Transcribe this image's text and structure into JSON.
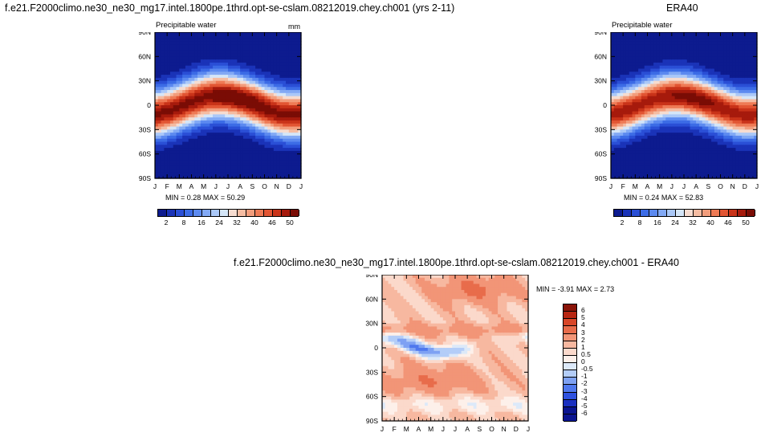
{
  "chart_data": [
    {
      "type": "heatmap",
      "title": "f.e21.F2000climo.ne30_ne30_mg17.intel.1800pe.1thrd.opt-se-cslam.08212019.chey.ch001 (yrs 2-11)",
      "subtitle": "Precipitable water",
      "units": "mm",
      "x_ticks": [
        "J",
        "F",
        "M",
        "A",
        "M",
        "J",
        "J",
        "A",
        "S",
        "O",
        "N",
        "D",
        "J"
      ],
      "y_ticks": [
        "90N",
        "60N",
        "30N",
        "0",
        "30S",
        "60S",
        "90S"
      ],
      "stats_min_label": "MIN =",
      "stats_min": "0.28",
      "stats_max_label": "MAX =",
      "stats_max": "50.29",
      "colorbar_labels": [
        "2",
        "8",
        "16",
        "24",
        "32",
        "40",
        "46",
        "50"
      ],
      "min_value": 0.28,
      "max_value": 50.29
    },
    {
      "type": "heatmap",
      "title": "ERA40",
      "subtitle": "Precipitable water",
      "x_ticks": [
        "J",
        "F",
        "M",
        "A",
        "M",
        "J",
        "J",
        "A",
        "S",
        "O",
        "N",
        "D",
        "J"
      ],
      "y_ticks": [
        "90N",
        "60N",
        "30N",
        "0",
        "30S",
        "60S",
        "90S"
      ],
      "stats_min_label": "MIN =",
      "stats_min": "0.24",
      "stats_max_label": "MAX =",
      "stats_max": "52.83",
      "colorbar_labels": [
        "2",
        "8",
        "16",
        "24",
        "32",
        "40",
        "46",
        "50"
      ],
      "min_value": 0.24,
      "max_value": 52.83
    },
    {
      "type": "heatmap",
      "title": "f.e21.F2000climo.ne30_ne30_mg17.intel.1800pe.1thrd.opt-se-cslam.08212019.chey.ch001 - ERA40",
      "x_ticks": [
        "J",
        "F",
        "M",
        "A",
        "M",
        "J",
        "J",
        "A",
        "S",
        "O",
        "N",
        "D",
        "J"
      ],
      "y_ticks": [
        "90N",
        "60N",
        "30N",
        "0",
        "30S",
        "60S",
        "90S"
      ],
      "stats_min_label": "MIN =",
      "stats_min": "-3.91",
      "stats_max_label": "MAX =",
      "stats_max": "2.73",
      "colorbar_labels": [
        "6",
        "5",
        "4",
        "3",
        "2",
        "1",
        "0.5",
        "0",
        "-0.5",
        "-1",
        "-2",
        "-3",
        "-4",
        "-5",
        "-6"
      ],
      "min_value": -3.91,
      "max_value": 2.73
    }
  ],
  "colors": {
    "seq": [
      "#0d1b8f",
      "#1a33b8",
      "#2a4fd6",
      "#3c6ce6",
      "#5c8af0",
      "#82a9f5",
      "#aac8f8",
      "#d5e6f8",
      "#f6dcd0",
      "#f5bca2",
      "#f29d7c",
      "#ee7a55",
      "#e25533",
      "#c93319",
      "#a61a0c",
      "#7a0c05"
    ],
    "diff": [
      "#0a1490",
      "#1a30c0",
      "#2f52e0",
      "#4f78ee",
      "#7ea1f3",
      "#b3cdf8",
      "#dce9f9",
      "#fdf0ea",
      "#fbd9cb",
      "#f7b8a0",
      "#f29577",
      "#e86c4b",
      "#d84628",
      "#b72612",
      "#8a1408"
    ]
  }
}
